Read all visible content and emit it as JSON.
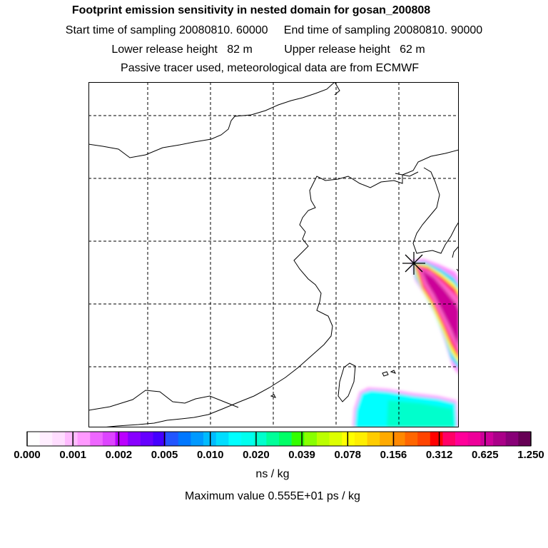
{
  "header": {
    "title": "Footprint emission sensitivity in nested domain for gosan_200808",
    "sampling": "Start time of sampling 20080810. 60000     End time of sampling 20080810. 90000",
    "release": "Lower release height   82 m          Upper release height   62 m",
    "tracer": "Passive tracer used, meteorological data are from ECMWF"
  },
  "legend": {
    "tick_labels": [
      "0.000",
      "0.001",
      "0.002",
      "0.005",
      "0.010",
      "0.020",
      "0.039",
      "0.078",
      "0.156",
      "0.312",
      "0.625",
      "1.250"
    ],
    "unit": "ns / kg",
    "max_value": "Maximum value  0.555E+01 ps / kg",
    "colors": [
      "#ffffff",
      "#ffeeff",
      "#ffddff",
      "#ffbbff",
      "#ff99ff",
      "#ee66ff",
      "#dd44ff",
      "#bb00ff",
      "#8800ff",
      "#6600ff",
      "#4400ff",
      "#2255ff",
      "#0077ff",
      "#0099ff",
      "#00bbff",
      "#00ddff",
      "#00ffff",
      "#00ffee",
      "#00ffcc",
      "#00ff99",
      "#00ff66",
      "#33ff00",
      "#88ff00",
      "#bbff00",
      "#ddff00",
      "#ffff00",
      "#ffee00",
      "#ffcc00",
      "#ffaa00",
      "#ff8800",
      "#ff6600",
      "#ff4400",
      "#ff0000",
      "#ff0066",
      "#ff0099",
      "#ee0099",
      "#cc0099",
      "#aa0088",
      "#880077",
      "#660055"
    ]
  },
  "map": {
    "receptor_icon": "star-marker-icon",
    "grid": "dashed",
    "coastline_color": "#000000"
  }
}
